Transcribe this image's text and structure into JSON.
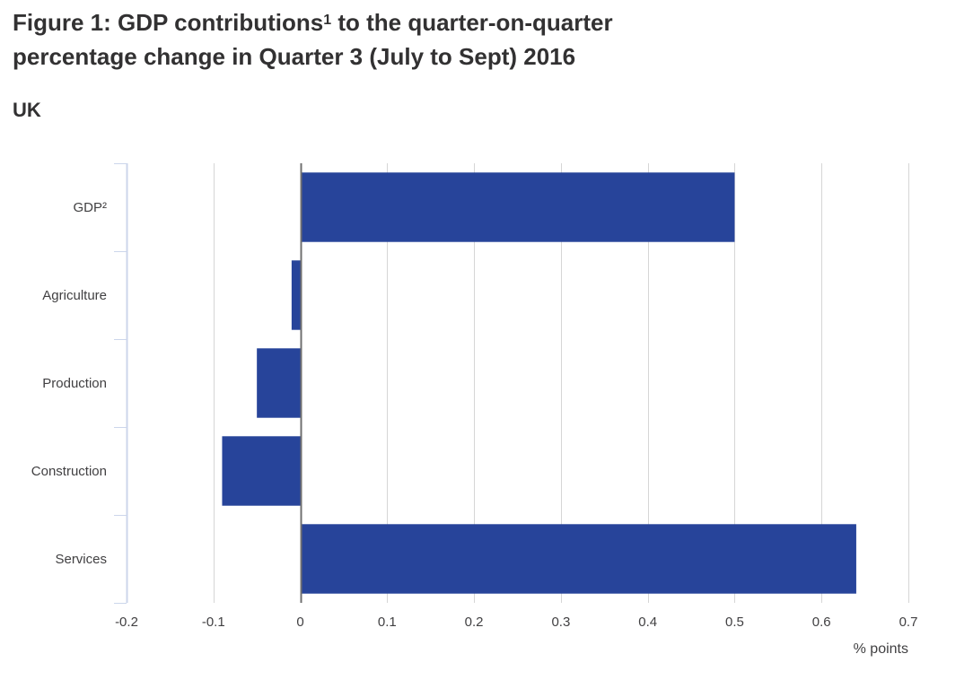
{
  "header": {
    "title_part1": "Figure 1: GDP contributions",
    "title_sup": "1",
    "title_part2": " to the quarter-on-quarter",
    "title_line2": "percentage change in Quarter 3 (July to Sept) 2016",
    "subtitle": "UK"
  },
  "colors": {
    "bar": "#27449a",
    "grid": "#d6d6d6",
    "zero_line": "#707070",
    "axis": "#ccd6eb"
  },
  "chart_data": {
    "type": "bar",
    "orientation": "horizontal",
    "title": "Figure 1: GDP contributions1 to the quarter-on-quarter percentage change in Quarter 3 (July to Sept) 2016",
    "subtitle": "UK",
    "categories": [
      "GDP²",
      "Agriculture",
      "Production",
      "Construction",
      "Services"
    ],
    "values": [
      0.5,
      -0.01,
      -0.05,
      -0.09,
      0.64
    ],
    "xlim": [
      -0.2,
      0.7
    ],
    "xticks": [
      -0.2,
      -0.1,
      0,
      0.1,
      0.2,
      0.3,
      0.4,
      0.5,
      0.6,
      0.7
    ],
    "xtick_labels": [
      "-0.2",
      "-0.1",
      "0",
      "0.1",
      "0.2",
      "0.3",
      "0.4",
      "0.5",
      "0.6",
      "0.7"
    ],
    "xlabel": "% points",
    "ylabel": "",
    "grid": true
  }
}
